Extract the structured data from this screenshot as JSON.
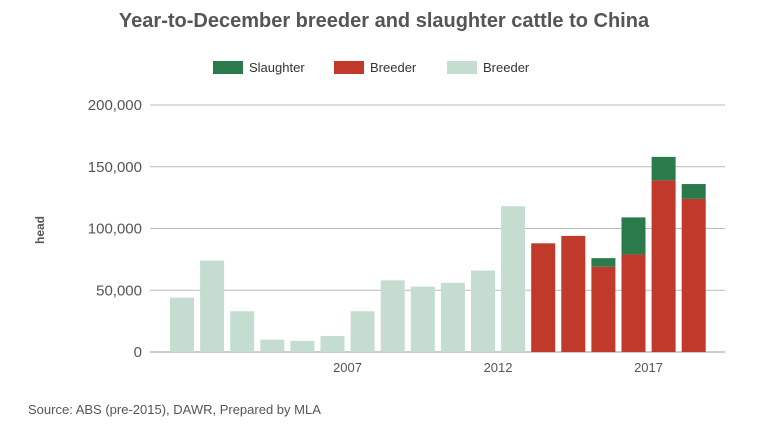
{
  "chart_data": {
    "type": "bar",
    "stacked": true,
    "title": "Year-to-December breeder and slaughter cattle to China",
    "ylabel": "head",
    "xlabel": "",
    "ylim": [
      0,
      200000
    ],
    "yticks": [
      0,
      50000,
      100000,
      150000,
      200000
    ],
    "ytick_labels": [
      "0",
      "50,000",
      "100,000",
      "150,000",
      "200,000"
    ],
    "x": [
      2002,
      2003,
      2004,
      2005,
      2006,
      2007,
      2008,
      2009,
      2010,
      2011,
      2012,
      2013,
      2014,
      2015,
      2016,
      2017,
      2018,
      2019,
      2020
    ],
    "xtick_labels": [
      {
        "year": 2007,
        "label": "2007"
      },
      {
        "year": 2012,
        "label": "2012"
      },
      {
        "year": 2017,
        "label": "2017"
      }
    ],
    "legend_position": "top",
    "grid": "horizontal",
    "series": [
      {
        "name": "Breeder",
        "color": "#c5ddd0",
        "values": [
          44000,
          74000,
          33000,
          10000,
          9000,
          13000,
          33000,
          58000,
          53000,
          56000,
          66000,
          118000,
          0,
          0,
          0,
          0,
          0,
          0,
          0
        ]
      },
      {
        "name": "Breeder",
        "color": "#c0392b",
        "values": [
          0,
          0,
          0,
          0,
          0,
          0,
          0,
          0,
          0,
          0,
          0,
          0,
          88000,
          94000,
          69000,
          79000,
          139000,
          124000,
          0
        ]
      },
      {
        "name": "Slaughter",
        "color": "#2b7a4b",
        "values": [
          0,
          0,
          0,
          0,
          0,
          0,
          0,
          0,
          0,
          0,
          0,
          0,
          0,
          0,
          7000,
          30000,
          19000,
          12000,
          0
        ]
      }
    ],
    "legend_order": [
      2,
      1,
      0
    ]
  },
  "source": "Source: ABS (pre-2015), DAWR, Prepared by MLA"
}
